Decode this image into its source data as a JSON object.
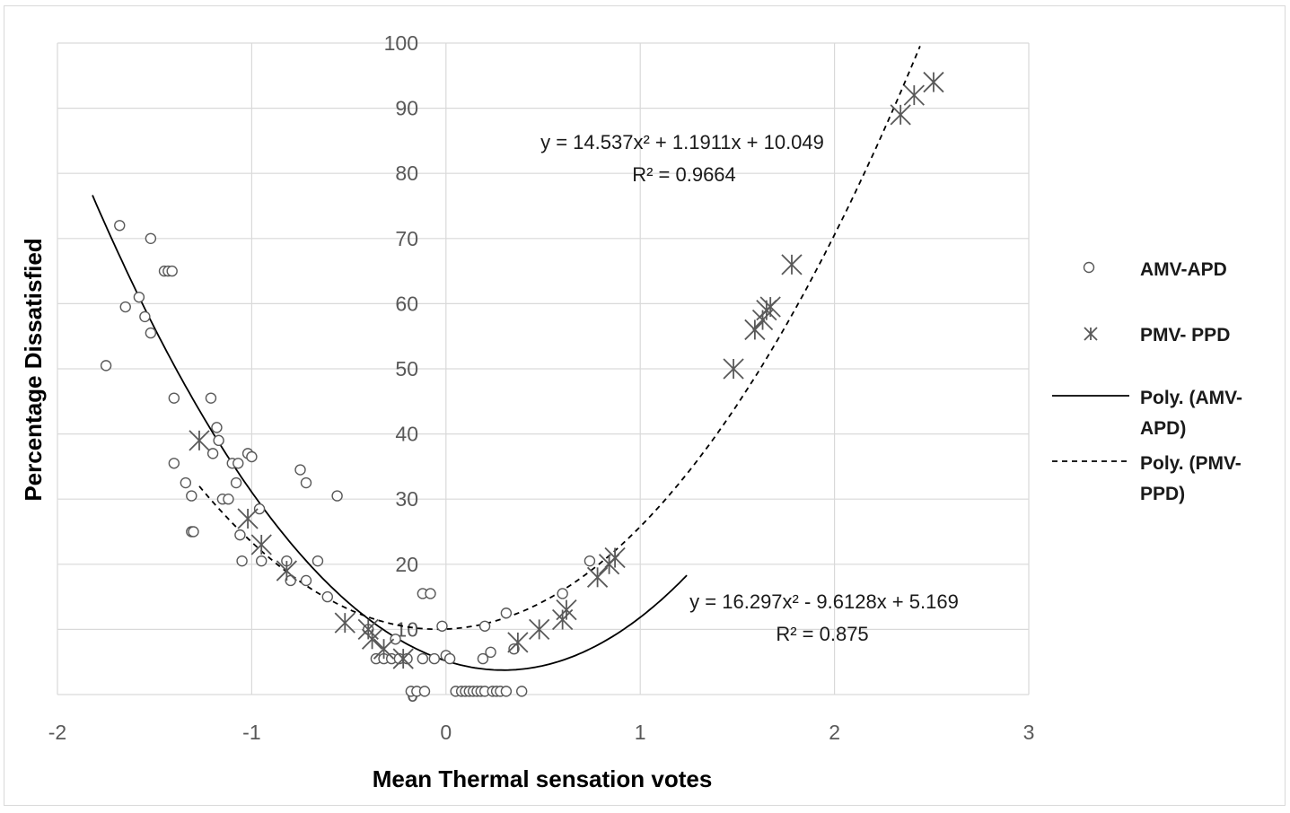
{
  "chart_data": {
    "type": "scatter",
    "title": "",
    "xlabel": "Mean Thermal sensation votes",
    "ylabel": "Percentage Dissatisfied",
    "xlim": [
      -2,
      3
    ],
    "ylim": [
      0,
      100
    ],
    "xticks": [
      "-2",
      "-1",
      "0",
      "1",
      "2",
      "3"
    ],
    "yticks": [
      "0",
      "10",
      "20",
      "30",
      "40",
      "50",
      "60",
      "70",
      "80",
      "90",
      "100"
    ],
    "grid": true,
    "legend_position": "right",
    "series": [
      {
        "name": "AMV-APD",
        "marker": "circle",
        "color": "#595959",
        "points": [
          [
            -1.75,
            50.5
          ],
          [
            -1.68,
            72
          ],
          [
            -1.65,
            59.5
          ],
          [
            -1.58,
            61
          ],
          [
            -1.55,
            58
          ],
          [
            -1.52,
            70
          ],
          [
            -1.52,
            55.5
          ],
          [
            -1.45,
            65
          ],
          [
            -1.43,
            65
          ],
          [
            -1.41,
            65
          ],
          [
            -1.4,
            45.5
          ],
          [
            -1.4,
            35.5
          ],
          [
            -1.34,
            32.5
          ],
          [
            -1.31,
            30.5
          ],
          [
            -1.31,
            25
          ],
          [
            -1.3,
            25
          ],
          [
            -1.21,
            45.5
          ],
          [
            -1.2,
            37
          ],
          [
            -1.18,
            41
          ],
          [
            -1.17,
            39
          ],
          [
            -1.15,
            30
          ],
          [
            -1.12,
            30
          ],
          [
            -1.1,
            35.5
          ],
          [
            -1.08,
            32.5
          ],
          [
            -1.07,
            35.5
          ],
          [
            -1.06,
            24.5
          ],
          [
            -1.05,
            20.5
          ],
          [
            -1.02,
            37
          ],
          [
            -1.0,
            36.5
          ],
          [
            -0.96,
            28.5
          ],
          [
            -0.95,
            20.5
          ],
          [
            -0.82,
            20.5
          ],
          [
            -0.8,
            17.5
          ],
          [
            -0.75,
            34.5
          ],
          [
            -0.72,
            32.5
          ],
          [
            -0.72,
            17.5
          ],
          [
            -0.66,
            20.5
          ],
          [
            -0.61,
            15
          ],
          [
            -0.56,
            30.5
          ],
          [
            -0.4,
            10
          ],
          [
            -0.36,
            5.5
          ],
          [
            -0.32,
            5.5
          ],
          [
            -0.28,
            5.5
          ],
          [
            -0.26,
            8.5
          ],
          [
            -0.24,
            5.5
          ],
          [
            -0.2,
            5.5
          ],
          [
            -0.18,
            0.5
          ],
          [
            -0.15,
            0.5
          ],
          [
            -0.12,
            5.5
          ],
          [
            -0.12,
            15.5
          ],
          [
            -0.11,
            0.5
          ],
          [
            -0.08,
            15.5
          ],
          [
            -0.06,
            5.5
          ],
          [
            -0.02,
            10.5
          ],
          [
            0.0,
            6
          ],
          [
            0.02,
            5.5
          ],
          [
            0.05,
            0.5
          ],
          [
            0.08,
            0.5
          ],
          [
            0.1,
            0.5
          ],
          [
            0.12,
            0.5
          ],
          [
            0.14,
            0.5
          ],
          [
            0.16,
            0.5
          ],
          [
            0.18,
            0.5
          ],
          [
            0.2,
            0.5
          ],
          [
            0.19,
            5.5
          ],
          [
            0.2,
            10.5
          ],
          [
            0.23,
            6.5
          ],
          [
            0.24,
            0.5
          ],
          [
            0.26,
            0.5
          ],
          [
            0.28,
            0.5
          ],
          [
            0.31,
            12.5
          ],
          [
            0.31,
            0.5
          ],
          [
            0.35,
            7
          ],
          [
            0.39,
            0.5
          ],
          [
            0.6,
            15.5
          ],
          [
            0.74,
            20.5
          ]
        ]
      },
      {
        "name": "PMV- PPD",
        "marker": "star",
        "color": "#595959",
        "points": [
          [
            -1.27,
            39
          ],
          [
            -1.02,
            27
          ],
          [
            -0.95,
            23
          ],
          [
            -0.82,
            19
          ],
          [
            -0.52,
            11
          ],
          [
            -0.4,
            10
          ],
          [
            -0.38,
            8.5
          ],
          [
            -0.32,
            7
          ],
          [
            -0.22,
            5.5
          ],
          [
            0.37,
            8
          ],
          [
            0.48,
            10
          ],
          [
            0.6,
            11.5
          ],
          [
            0.62,
            13
          ],
          [
            0.78,
            18
          ],
          [
            0.84,
            20
          ],
          [
            0.87,
            21
          ],
          [
            1.48,
            50
          ],
          [
            1.59,
            56
          ],
          [
            1.63,
            57.5
          ],
          [
            1.65,
            59
          ],
          [
            1.67,
            59.5
          ],
          [
            1.78,
            66
          ],
          [
            2.34,
            89
          ],
          [
            2.41,
            92
          ],
          [
            2.51,
            94
          ]
        ]
      }
    ],
    "trendlines": [
      {
        "name": "Poly. (AMV-APD)",
        "style": "solid",
        "color": "#000000",
        "coefficients": [
          16.297,
          -9.6128,
          5.169
        ],
        "x_range": [
          -1.82,
          1.24
        ],
        "equation": "y = 16.297x² - 9.6128x + 5.169",
        "r2": "R² = 0.875"
      },
      {
        "name": "Poly. (PMV-PPD)",
        "style": "dashed",
        "color": "#000000",
        "coefficients": [
          14.537,
          1.1911,
          10.049
        ],
        "x_range": [
          -1.27,
          2.56
        ],
        "equation": "y = 14.537x² + 1.1911x + 10.049",
        "r2": "R² = 0.9664"
      }
    ],
    "legend": [
      {
        "symbol": "circle",
        "lines": [
          "AMV-APD"
        ]
      },
      {
        "symbol": "star",
        "lines": [
          "PMV- PPD"
        ]
      },
      {
        "symbol": "solid-line",
        "lines": [
          "Poly. (AMV-",
          "APD)"
        ]
      },
      {
        "symbol": "dashed-line",
        "lines": [
          "Poly. (PMV-",
          "PPD)"
        ]
      }
    ]
  }
}
